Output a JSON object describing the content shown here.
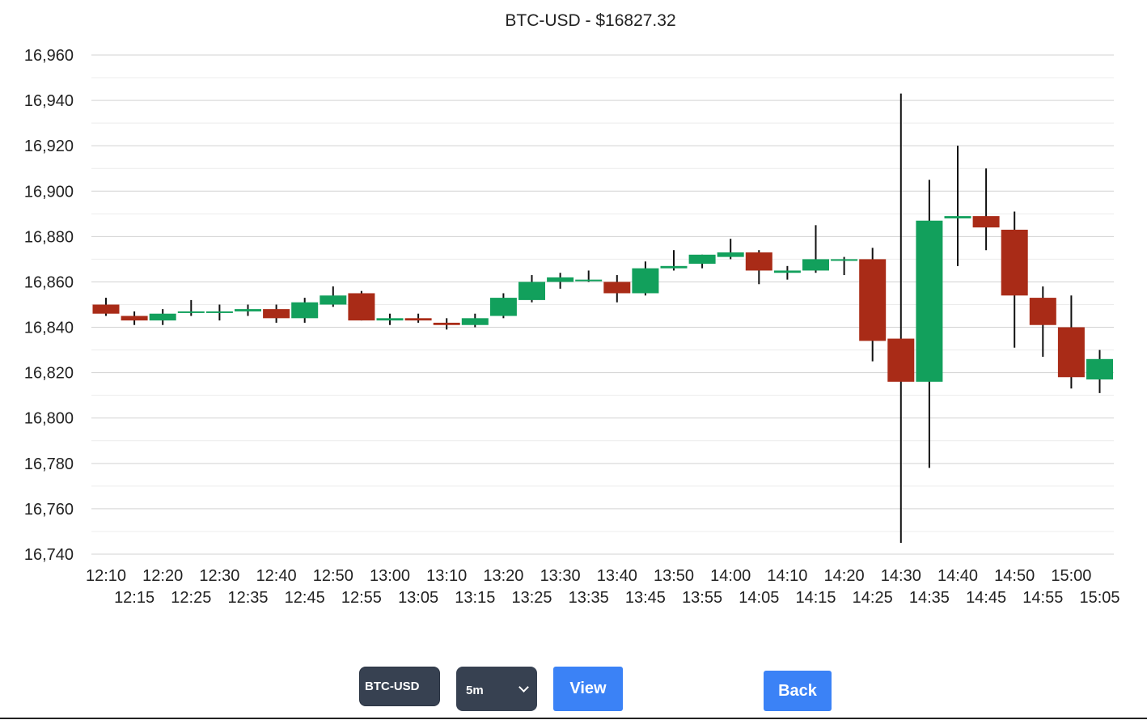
{
  "chart_data": {
    "type": "candlestick",
    "title": "BTC-USD - $16827.32",
    "ylim": [
      16740,
      16960
    ],
    "y_ticks": [
      "16,960",
      "16,940",
      "16,920",
      "16,900",
      "16,880",
      "16,860",
      "16,840",
      "16,820",
      "16,800",
      "16,780",
      "16,760",
      "16,740"
    ],
    "y_tick_values": [
      16960,
      16940,
      16920,
      16900,
      16880,
      16860,
      16840,
      16820,
      16800,
      16780,
      16760,
      16740
    ],
    "grid": true,
    "up_color": "#12a05c",
    "down_color": "#a92b17",
    "wick_color": "#111111",
    "categories": [
      "12:10",
      "12:15",
      "12:20",
      "12:25",
      "12:30",
      "12:35",
      "12:40",
      "12:45",
      "12:50",
      "12:55",
      "13:00",
      "13:05",
      "13:10",
      "13:15",
      "13:20",
      "13:25",
      "13:30",
      "13:35",
      "13:40",
      "13:45",
      "13:50",
      "13:55",
      "14:00",
      "14:05",
      "14:10",
      "14:15",
      "14:20",
      "14:25",
      "14:30",
      "14:35",
      "14:40",
      "14:45",
      "14:50",
      "14:55",
      "15:00",
      "15:05"
    ],
    "candles": [
      {
        "o": 16850,
        "h": 16853,
        "l": 16845,
        "c": 16846
      },
      {
        "o": 16845,
        "h": 16847,
        "l": 16841,
        "c": 16843
      },
      {
        "o": 16843,
        "h": 16848,
        "l": 16841,
        "c": 16846
      },
      {
        "o": 16847,
        "h": 16852,
        "l": 16845,
        "c": 16847
      },
      {
        "o": 16847,
        "h": 16850,
        "l": 16843,
        "c": 16847
      },
      {
        "o": 16847,
        "h": 16850,
        "l": 16845,
        "c": 16848
      },
      {
        "o": 16848,
        "h": 16850,
        "l": 16842,
        "c": 16844
      },
      {
        "o": 16844,
        "h": 16853,
        "l": 16842,
        "c": 16851
      },
      {
        "o": 16850,
        "h": 16858,
        "l": 16849,
        "c": 16854
      },
      {
        "o": 16855,
        "h": 16856,
        "l": 16843,
        "c": 16843
      },
      {
        "o": 16843,
        "h": 16846,
        "l": 16841,
        "c": 16844
      },
      {
        "o": 16844,
        "h": 16846,
        "l": 16842,
        "c": 16843
      },
      {
        "o": 16842,
        "h": 16844,
        "l": 16839,
        "c": 16841
      },
      {
        "o": 16841,
        "h": 16846,
        "l": 16840,
        "c": 16844
      },
      {
        "o": 16845,
        "h": 16855,
        "l": 16844,
        "c": 16853
      },
      {
        "o": 16852,
        "h": 16863,
        "l": 16851,
        "c": 16860
      },
      {
        "o": 16860,
        "h": 16864,
        "l": 16857,
        "c": 16862
      },
      {
        "o": 16861,
        "h": 16865,
        "l": 16860,
        "c": 16861
      },
      {
        "o": 16860,
        "h": 16863,
        "l": 16851,
        "c": 16855
      },
      {
        "o": 16855,
        "h": 16869,
        "l": 16854,
        "c": 16866
      },
      {
        "o": 16866,
        "h": 16874,
        "l": 16865,
        "c": 16867
      },
      {
        "o": 16868,
        "h": 16872,
        "l": 16866,
        "c": 16872
      },
      {
        "o": 16871,
        "h": 16879,
        "l": 16870,
        "c": 16873
      },
      {
        "o": 16873,
        "h": 16874,
        "l": 16859,
        "c": 16865
      },
      {
        "o": 16864,
        "h": 16867,
        "l": 16861,
        "c": 16865
      },
      {
        "o": 16865,
        "h": 16885,
        "l": 16864,
        "c": 16870
      },
      {
        "o": 16870,
        "h": 16871,
        "l": 16863,
        "c": 16870
      },
      {
        "o": 16870,
        "h": 16875,
        "l": 16825,
        "c": 16834
      },
      {
        "o": 16835,
        "h": 16943,
        "l": 16745,
        "c": 16816
      },
      {
        "o": 16816,
        "h": 16905,
        "l": 16778,
        "c": 16887
      },
      {
        "o": 16888,
        "h": 16920,
        "l": 16867,
        "c": 16889
      },
      {
        "o": 16889,
        "h": 16910,
        "l": 16874,
        "c": 16884
      },
      {
        "o": 16883,
        "h": 16891,
        "l": 16831,
        "c": 16854
      },
      {
        "o": 16853,
        "h": 16858,
        "l": 16827,
        "c": 16841
      },
      {
        "o": 16840,
        "h": 16854,
        "l": 16813,
        "c": 16818
      },
      {
        "o": 16817,
        "h": 16830,
        "l": 16811,
        "c": 16826
      }
    ]
  },
  "controls": {
    "symbol_value": "BTC-USD",
    "interval_value": "5m",
    "view_label": "View",
    "back_label": "Back"
  }
}
